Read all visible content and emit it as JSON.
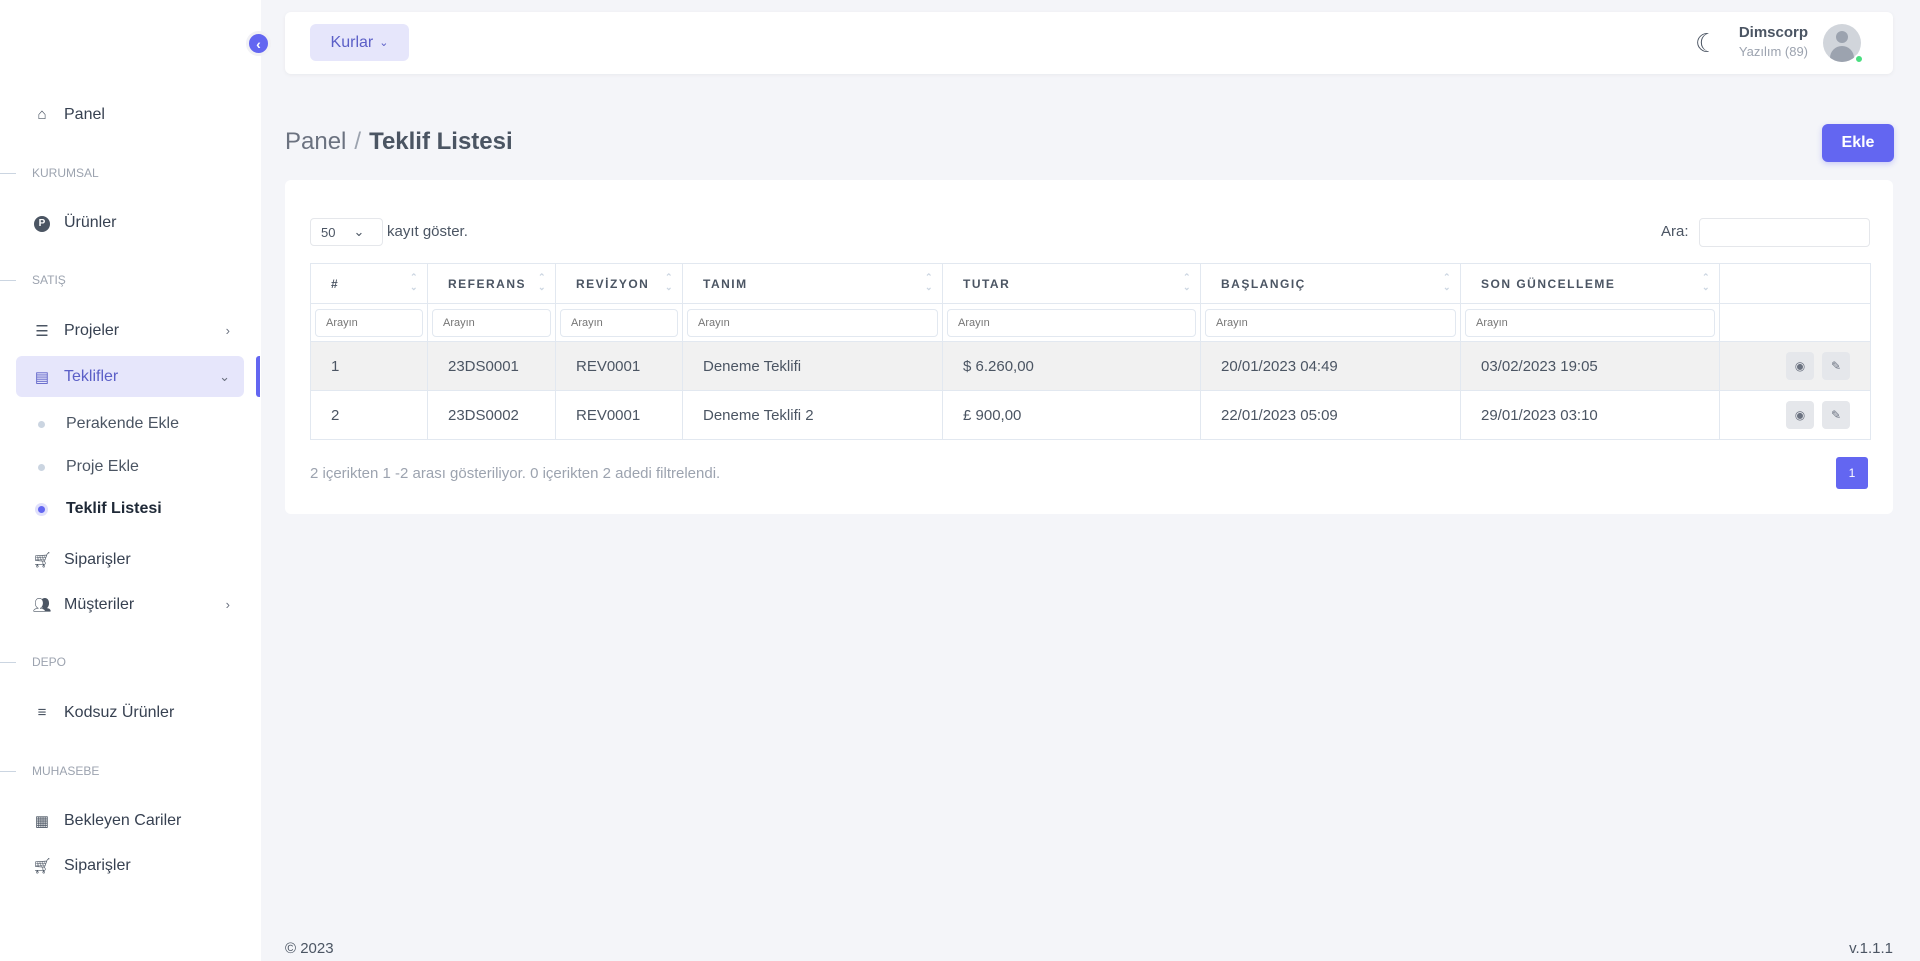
{
  "sidebar": {
    "panel": "Panel",
    "sections": {
      "kurumsal": "KURUMSAL",
      "satis": "SATIŞ",
      "depo": "DEPO",
      "muhasebe": "MUHASEBE"
    },
    "urunler": "Ürünler",
    "projeler": "Projeler",
    "teklifler": "Teklifler",
    "sub": [
      "Perakende Ekle",
      "Proje Ekle",
      "Teklif Listesi"
    ],
    "siparisler": "Siparişler",
    "musteriler": "Müşteriler",
    "kodsuz": "Kodsuz Ürünler",
    "bekleyen": "Bekleyen Cariler",
    "siparisler2": "Siparişler"
  },
  "header": {
    "kurlar": "Kurlar",
    "user_name": "Dimscorp",
    "user_role": "Yazılım (89)"
  },
  "breadcrumb": {
    "parent": "Panel",
    "sep": "/",
    "current": "Teklif Listesi"
  },
  "add_button": "Ekle",
  "table": {
    "length_value": "50",
    "length_label": "kayıt göster.",
    "search_label": "Ara:",
    "filter_placeholder": "Arayın",
    "columns": [
      "#",
      "REFERANS",
      "REVİZYON",
      "TANIM",
      "TUTAR",
      "BAŞLANGIÇ",
      "SON GÜNCELLEME"
    ],
    "rows": [
      [
        "1",
        "23DS0001",
        "REV0001",
        "Deneme Teklifi",
        "$ 6.260,00",
        "20/01/2023 04:49",
        "03/02/2023 19:05"
      ],
      [
        "2",
        "23DS0002",
        "REV0001",
        "Deneme Teklifi 2",
        "£ 900,00",
        "22/01/2023 05:09",
        "29/01/2023 03:10"
      ]
    ],
    "info": "2 içerikten 1 -2 arası gösteriliyor. 0 içerikten 2 adedi filtrelendi.",
    "page": "1"
  },
  "footer": {
    "copyright": "© 2023",
    "version": "v.1.1.1"
  },
  "colors": {
    "primary": "#6366f1",
    "active_bg": "#e6e6fb",
    "online": "#4ade80"
  }
}
